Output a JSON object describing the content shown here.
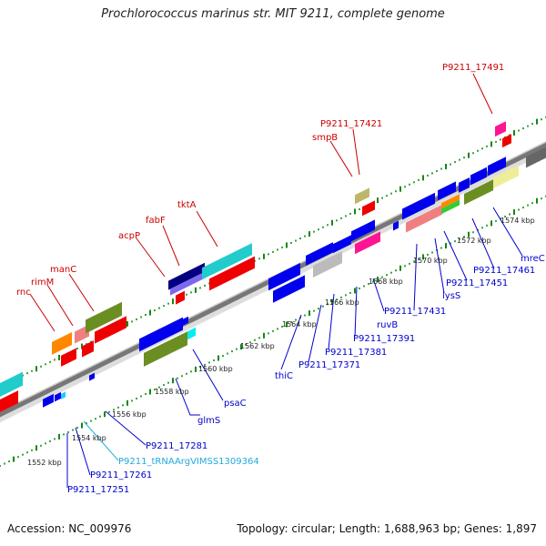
{
  "title": "Prochlorococcus marinus str. MIT 9211, complete genome",
  "accession": "Accession: NC_009976",
  "topology": "Topology: circular; Length: 1,688,963 bp; Genes: 1,897",
  "colors": {
    "forward_label": "#cc0000",
    "reverse_label": "#0000cc",
    "trna_label": "#22aadd",
    "backbone": "#777777",
    "tick": "#118811"
  },
  "kbp_labels": [
    "1552 kbp",
    "1554 kbp",
    "1556 kbp",
    "1558 kbp",
    "1560 kbp",
    "1562 kbp",
    "1564 kbp",
    "1566 kbp",
    "1568 kbp",
    "1570 kbp",
    "1572 kbp",
    "1574 kbp"
  ],
  "forward_labels": [
    "rnc",
    "rimM",
    "manC",
    "acpP",
    "fabF",
    "tktA",
    "smpB",
    "P9211_17421",
    "P9211_17491"
  ],
  "reverse_labels": [
    "P9211_17251",
    "P9211_17261",
    "P9211_tRNAArgVIMSS1309364",
    "P9211_17281",
    "glmS",
    "psaC",
    "thiC",
    "P9211_17371",
    "P9211_17381",
    "P9211_17391",
    "ruvB",
    "P9211_17431",
    "lysS",
    "P9211_17451",
    "P9211_17461",
    "mreC"
  ]
}
